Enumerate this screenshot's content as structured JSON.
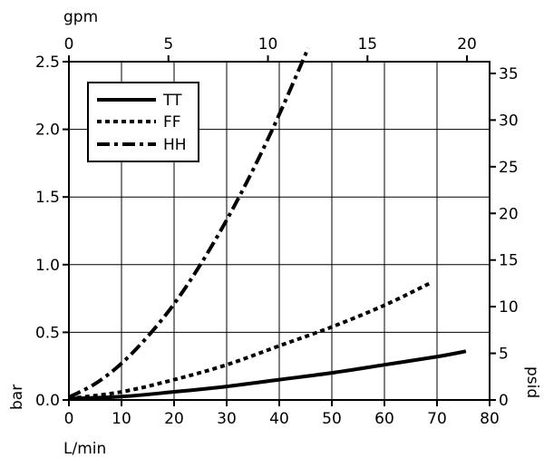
{
  "chart_data": {
    "type": "line",
    "x_axis": {
      "label": "L/min",
      "lim": [
        0,
        80
      ],
      "ticks": [
        0,
        10,
        20,
        30,
        40,
        50,
        60,
        70,
        80
      ],
      "tick_labels": [
        "0",
        "10",
        "20",
        "30",
        "40",
        "50",
        "60",
        "70",
        "80"
      ]
    },
    "x2_axis": {
      "label": "gpm",
      "ticks": [
        0,
        5,
        10,
        15,
        20
      ],
      "tick_labels": [
        "0",
        "5",
        "10",
        "15",
        "20"
      ],
      "lpm_per_gpm": 3.785
    },
    "y_axis": {
      "label": "bar",
      "lim": [
        0,
        2.5
      ],
      "ticks": [
        0,
        0.5,
        1.0,
        1.5,
        2.0,
        2.5
      ],
      "tick_labels": [
        "0.0",
        "0.5",
        "1.0",
        "1.5",
        "2.0",
        "2.5"
      ]
    },
    "y2_axis": {
      "label": "psid",
      "ticks": [
        0,
        5,
        10,
        15,
        20,
        25,
        30,
        35
      ],
      "tick_labels": [
        "0",
        "5",
        "10",
        "15",
        "20",
        "25",
        "30",
        "35"
      ],
      "psi_per_bar": 14.5038
    },
    "grid": true,
    "legend_position": "top-left",
    "series": [
      {
        "name": "TT",
        "style": "solid",
        "x": [
          0,
          10,
          20,
          30,
          40,
          50,
          60,
          70,
          75.5
        ],
        "y": [
          0.01,
          0.025,
          0.06,
          0.1,
          0.15,
          0.2,
          0.26,
          0.32,
          0.36
        ]
      },
      {
        "name": "FF",
        "style": "dotted",
        "x": [
          0,
          10,
          20,
          30,
          40,
          50,
          60,
          68.5
        ],
        "y": [
          0.01,
          0.06,
          0.15,
          0.26,
          0.4,
          0.54,
          0.7,
          0.86
        ]
      },
      {
        "name": "HH",
        "style": "dashdot",
        "x": [
          0,
          5,
          10,
          15,
          20,
          25,
          30,
          35,
          40,
          45.5
        ],
        "y": [
          0.02,
          0.12,
          0.27,
          0.47,
          0.71,
          1.0,
          1.33,
          1.7,
          2.11,
          2.6
        ]
      }
    ]
  }
}
